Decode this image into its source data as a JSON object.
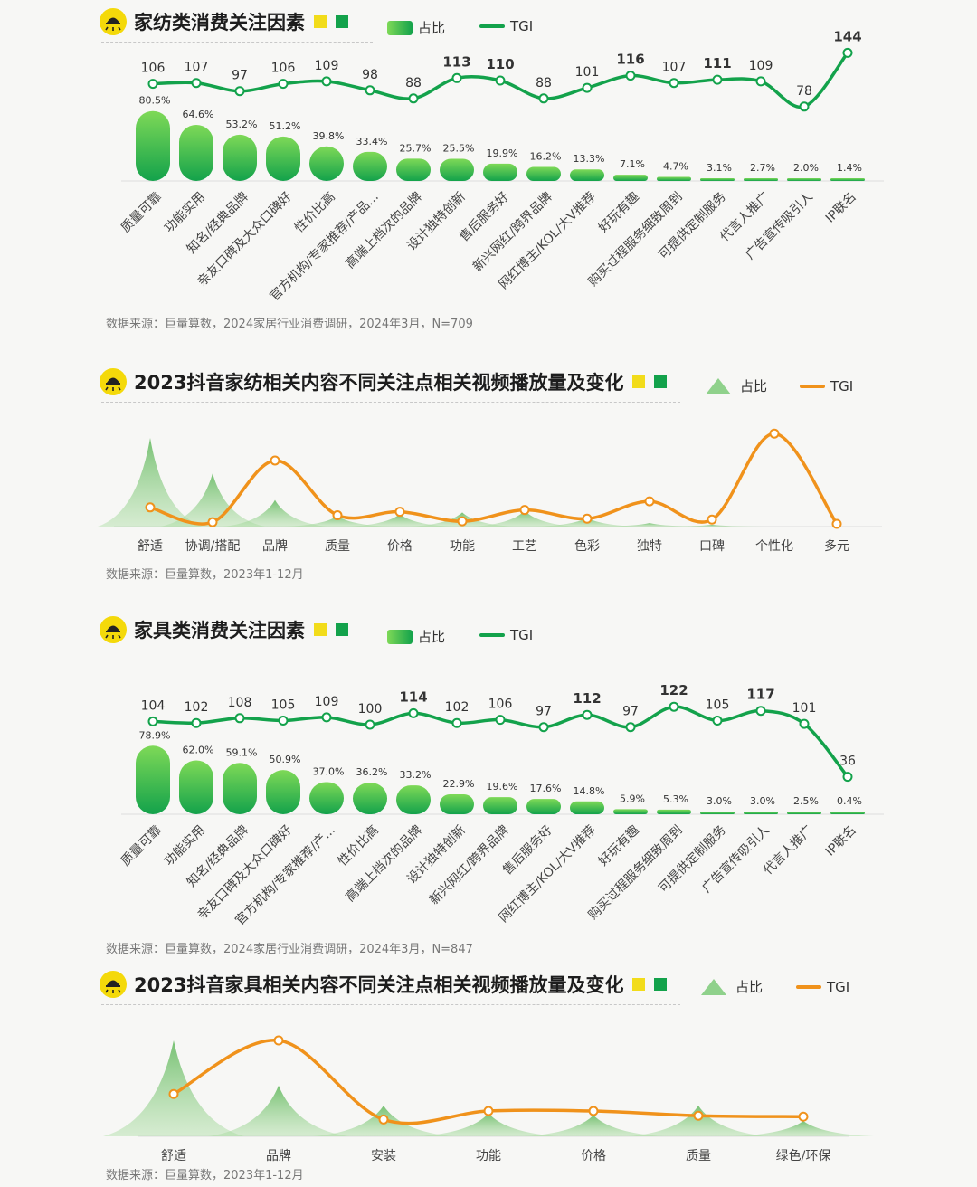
{
  "colors": {
    "green": "#13a24b",
    "light_green": "#7ed957",
    "orange": "#f0921b",
    "yellow": "#f2dc1a"
  },
  "icons": {
    "header": "lamp-icon"
  },
  "chart_data": [
    {
      "type": "bar",
      "title": "家纺类消费关注因素",
      "legend": {
        "bar": "占比",
        "line": "TGI"
      },
      "categories": [
        "质量可靠",
        "功能实用",
        "知名/经典品牌",
        "亲友口碑及大众口碑好",
        "性价比高",
        "官方机构/专家推荐/产品...",
        "高端上档次的品牌",
        "设计独特创新",
        "售后服务好",
        "新兴网红/跨界品牌",
        "网红博主/KOL/大V推荐",
        "好玩有趣",
        "购买过程服务细致周到",
        "可提供定制服务",
        "代言人推广",
        "广告宣传吸引人",
        "IP联名"
      ],
      "series": [
        {
          "name": "占比",
          "values": [
            80.5,
            64.6,
            53.2,
            51.2,
            39.8,
            33.4,
            25.7,
            25.5,
            19.9,
            16.2,
            13.3,
            7.1,
            4.7,
            3.1,
            2.7,
            2.0,
            1.4
          ],
          "labels": [
            "80.5%",
            "64.6%",
            "53.2%",
            "51.2%",
            "39.8%",
            "33.4%",
            "25.7%",
            "25.5%",
            "19.9%",
            "16.2%",
            "13.3%",
            "7.1%",
            "4.7%",
            "3.1%",
            "2.7%",
            "2.0%",
            "1.4%"
          ]
        },
        {
          "name": "TGI",
          "values": [
            106,
            107,
            97,
            106,
            109,
            98,
            88,
            113,
            110,
            88,
            101,
            116,
            107,
            111,
            109,
            78,
            144
          ]
        }
      ],
      "source": "数据来源：巨量算数，2024家居行业消费调研，2024年3月，N=709"
    },
    {
      "type": "area",
      "title": "2023抖音家纺相关内容不同关注点相关视频播放量及变化",
      "legend": {
        "area": "占比",
        "line": "TGI"
      },
      "categories": [
        "舒适",
        "协调/搭配",
        "品牌",
        "质量",
        "价格",
        "功能",
        "工艺",
        "色彩",
        "独特",
        "口碑",
        "个性化",
        "多元"
      ],
      "series": [
        {
          "name": "占比",
          "values": [
            100,
            60,
            30,
            12,
            14,
            16,
            18,
            10,
            4,
            2,
            0,
            0
          ]
        },
        {
          "name": "TGI",
          "values": [
            20,
            3,
            74,
            11,
            15,
            4,
            17,
            7,
            27,
            6,
            105,
            1
          ]
        }
      ],
      "source": "数据来源：巨量算数，2023年1-12月"
    },
    {
      "type": "bar",
      "title": "家具类消费关注因素",
      "legend": {
        "bar": "占比",
        "line": "TGI"
      },
      "categories": [
        "质量可靠",
        "功能实用",
        "知名/经典品牌",
        "亲友口碑及大众口碑好",
        "官方机构/专家推荐/产...",
        "性价比高",
        "高端上档次的品牌",
        "设计独特创新",
        "新兴网红/跨界品牌",
        "售后服务好",
        "网红博主/KOL/大V推荐",
        "好玩有趣",
        "购买过程服务细致周到",
        "可提供定制服务",
        "广告宣传吸引人",
        "代言人推广",
        "IP联名"
      ],
      "series": [
        {
          "name": "占比",
          "values": [
            78.9,
            62.0,
            59.1,
            50.9,
            37.0,
            36.2,
            33.2,
            22.9,
            19.6,
            17.6,
            14.8,
            5.9,
            5.3,
            3.0,
            3.0,
            2.5,
            0.4
          ],
          "labels": [
            "78.9%",
            "62.0%",
            "59.1%",
            "50.9%",
            "37.0%",
            "36.2%",
            "33.2%",
            "22.9%",
            "19.6%",
            "17.6%",
            "14.8%",
            "5.9%",
            "5.3%",
            "3.0%",
            "3.0%",
            "2.5%",
            "0.4%"
          ]
        },
        {
          "name": "TGI",
          "values": [
            104,
            102,
            108,
            105,
            109,
            100,
            114,
            102,
            106,
            97,
            112,
            97,
            122,
            105,
            117,
            101,
            36
          ]
        }
      ],
      "source": "数据来源：巨量算数，2024家居行业消费调研，2024年3月，N=847"
    },
    {
      "type": "area",
      "title": "2023抖音家具相关内容不同关注点相关视频播放量及变化",
      "legend": {
        "area": "占比",
        "line": "TGI"
      },
      "categories": [
        "舒适",
        "品牌",
        "安装",
        "功能",
        "价格",
        "质量",
        "绿色/环保"
      ],
      "series": [
        {
          "name": "占比",
          "values": [
            100,
            53,
            32,
            24,
            22,
            32,
            16
          ]
        },
        {
          "name": "TGI",
          "values": [
            43,
            100,
            16,
            25,
            25,
            20,
            19
          ]
        }
      ],
      "source": "数据来源：巨量算数，2023年1-12月"
    }
  ]
}
